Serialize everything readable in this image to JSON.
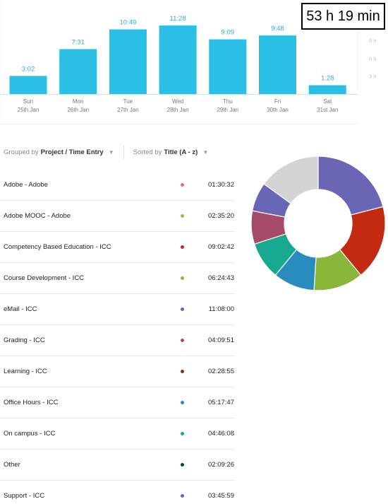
{
  "total": "53 h 19 min",
  "chart_data": {
    "type": "bar",
    "categories": [
      "Sun",
      "Mon",
      "Tue",
      "Wed",
      "Thu",
      "Fri",
      "Sat"
    ],
    "dates": [
      "25th Jan",
      "26th Jan",
      "27th Jan",
      "28th Jan",
      "29th Jan",
      "30th Jan",
      "31st Jan"
    ],
    "values": [
      3.03,
      7.52,
      10.82,
      11.47,
      9.15,
      9.8,
      1.47
    ],
    "value_labels": [
      "3:02",
      "7:31",
      "10:49",
      "11:28",
      "9:09",
      "9:48",
      "1:28"
    ],
    "ylim": [
      0,
      12
    ],
    "yticks": [
      "3 h",
      "6 h",
      "9 h"
    ],
    "bar_color": "#2bbfe6"
  },
  "filters": {
    "grouped_prefix": "Grouped by",
    "grouped_value": "Project / Time Entry",
    "sorted_prefix": "Sorted by",
    "sorted_value": "Title (A - z)"
  },
  "entries": [
    {
      "name": "Adobe - Adobe",
      "time": "01:30:32",
      "color": "#e06a8a"
    },
    {
      "name": "Adobe MOOC - Adobe",
      "time": "02:35:20",
      "color": "#8cc63f"
    },
    {
      "name": "Competency Based Education - ICC",
      "time": "09:02:42",
      "color": "#c1272d"
    },
    {
      "name": "Course Development - ICC",
      "time": "06:24:43",
      "color": "#8ab73a"
    },
    {
      "name": "eMail - ICC",
      "time": "11:08:00",
      "color": "#6a66b6"
    },
    {
      "name": "Grading - ICC",
      "time": "04:09:51",
      "color": "#a54b68"
    },
    {
      "name": "Learning - ICC",
      "time": "02:28:55",
      "color": "#6b3a2a"
    },
    {
      "name": "Office Hours - ICC",
      "time": "05:17:47",
      "color": "#2a8bbf"
    },
    {
      "name": "On campus - ICC",
      "time": "04:46:08",
      "color": "#17a98f"
    },
    {
      "name": "Other",
      "time": "02:09:26",
      "color": "#0d3b4f"
    },
    {
      "name": "Support - ICC",
      "time": "03:45:59",
      "color": "#6a66b6"
    }
  ],
  "donut": [
    {
      "value": 21,
      "color": "#6a66b6"
    },
    {
      "value": 18,
      "color": "#c22a12"
    },
    {
      "value": 12,
      "color": "#8ab73a"
    },
    {
      "value": 10,
      "color": "#2a8bbf"
    },
    {
      "value": 9,
      "color": "#17a98f"
    },
    {
      "value": 8,
      "color": "#a54b68"
    },
    {
      "value": 7,
      "color": "#6a66b6"
    },
    {
      "value": 15,
      "color": "#d4d4d4"
    }
  ]
}
